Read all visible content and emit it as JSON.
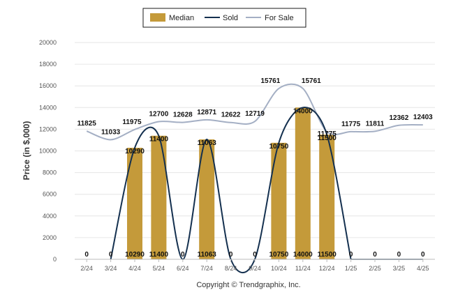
{
  "chart_data": {
    "type": "bar",
    "ylabel": "Price (in $,000)",
    "xlabel": "",
    "ylim": [
      0,
      20000
    ],
    "yticks": [
      0,
      2000,
      4000,
      6000,
      8000,
      10000,
      12000,
      14000,
      16000,
      18000,
      20000
    ],
    "grid": true,
    "legend_position": "top-center",
    "categories": [
      "2/24",
      "3/24",
      "4/24",
      "5/24",
      "6/24",
      "7/24",
      "8/24",
      "9/24",
      "10/24",
      "11/24",
      "12/24",
      "1/25",
      "2/25",
      "3/25",
      "4/25"
    ],
    "series": [
      {
        "name": "Median",
        "kind": "bar",
        "color": "#c49a3a",
        "values": [
          0,
          0,
          10290,
          11400,
          0,
          11063,
          0,
          0,
          10750,
          14000,
          11500,
          0,
          0,
          0,
          0
        ]
      },
      {
        "name": "Sold",
        "kind": "line",
        "color": "#14304f",
        "values": [
          0,
          0,
          10290,
          11400,
          0,
          11063,
          0,
          0,
          10750,
          14000,
          11500,
          0,
          0,
          0,
          0
        ]
      },
      {
        "name": "For Sale",
        "kind": "line",
        "color": "#a4afc4",
        "values": [
          11825,
          11033,
          11975,
          12700,
          12628,
          12871,
          12622,
          12719,
          15761,
          15761,
          11775,
          11775,
          11811,
          12362,
          12403
        ]
      }
    ],
    "sold_labels": [
      "0",
      "0",
      "10290",
      "11400",
      "0",
      "11063",
      "0",
      "0",
      "10750",
      "14000",
      "11500",
      "0",
      "0",
      "0",
      "0"
    ],
    "forsale_labels": [
      "11825",
      "11033",
      "11975",
      "12700",
      "12628",
      "12871",
      "12622",
      "12719",
      "15761",
      "15761",
      "11775",
      "11775",
      "11811",
      "12362",
      "12403"
    ],
    "bar_labels": [
      "",
      "",
      "10290",
      "11400",
      "",
      "11063",
      "",
      "",
      "10750",
      "14000",
      "11500",
      "",
      "",
      "",
      ""
    ]
  },
  "legend": {
    "median": "Median",
    "sold": "Sold",
    "for_sale": "For Sale"
  },
  "credit": "Copyright © Trendgraphix, Inc."
}
